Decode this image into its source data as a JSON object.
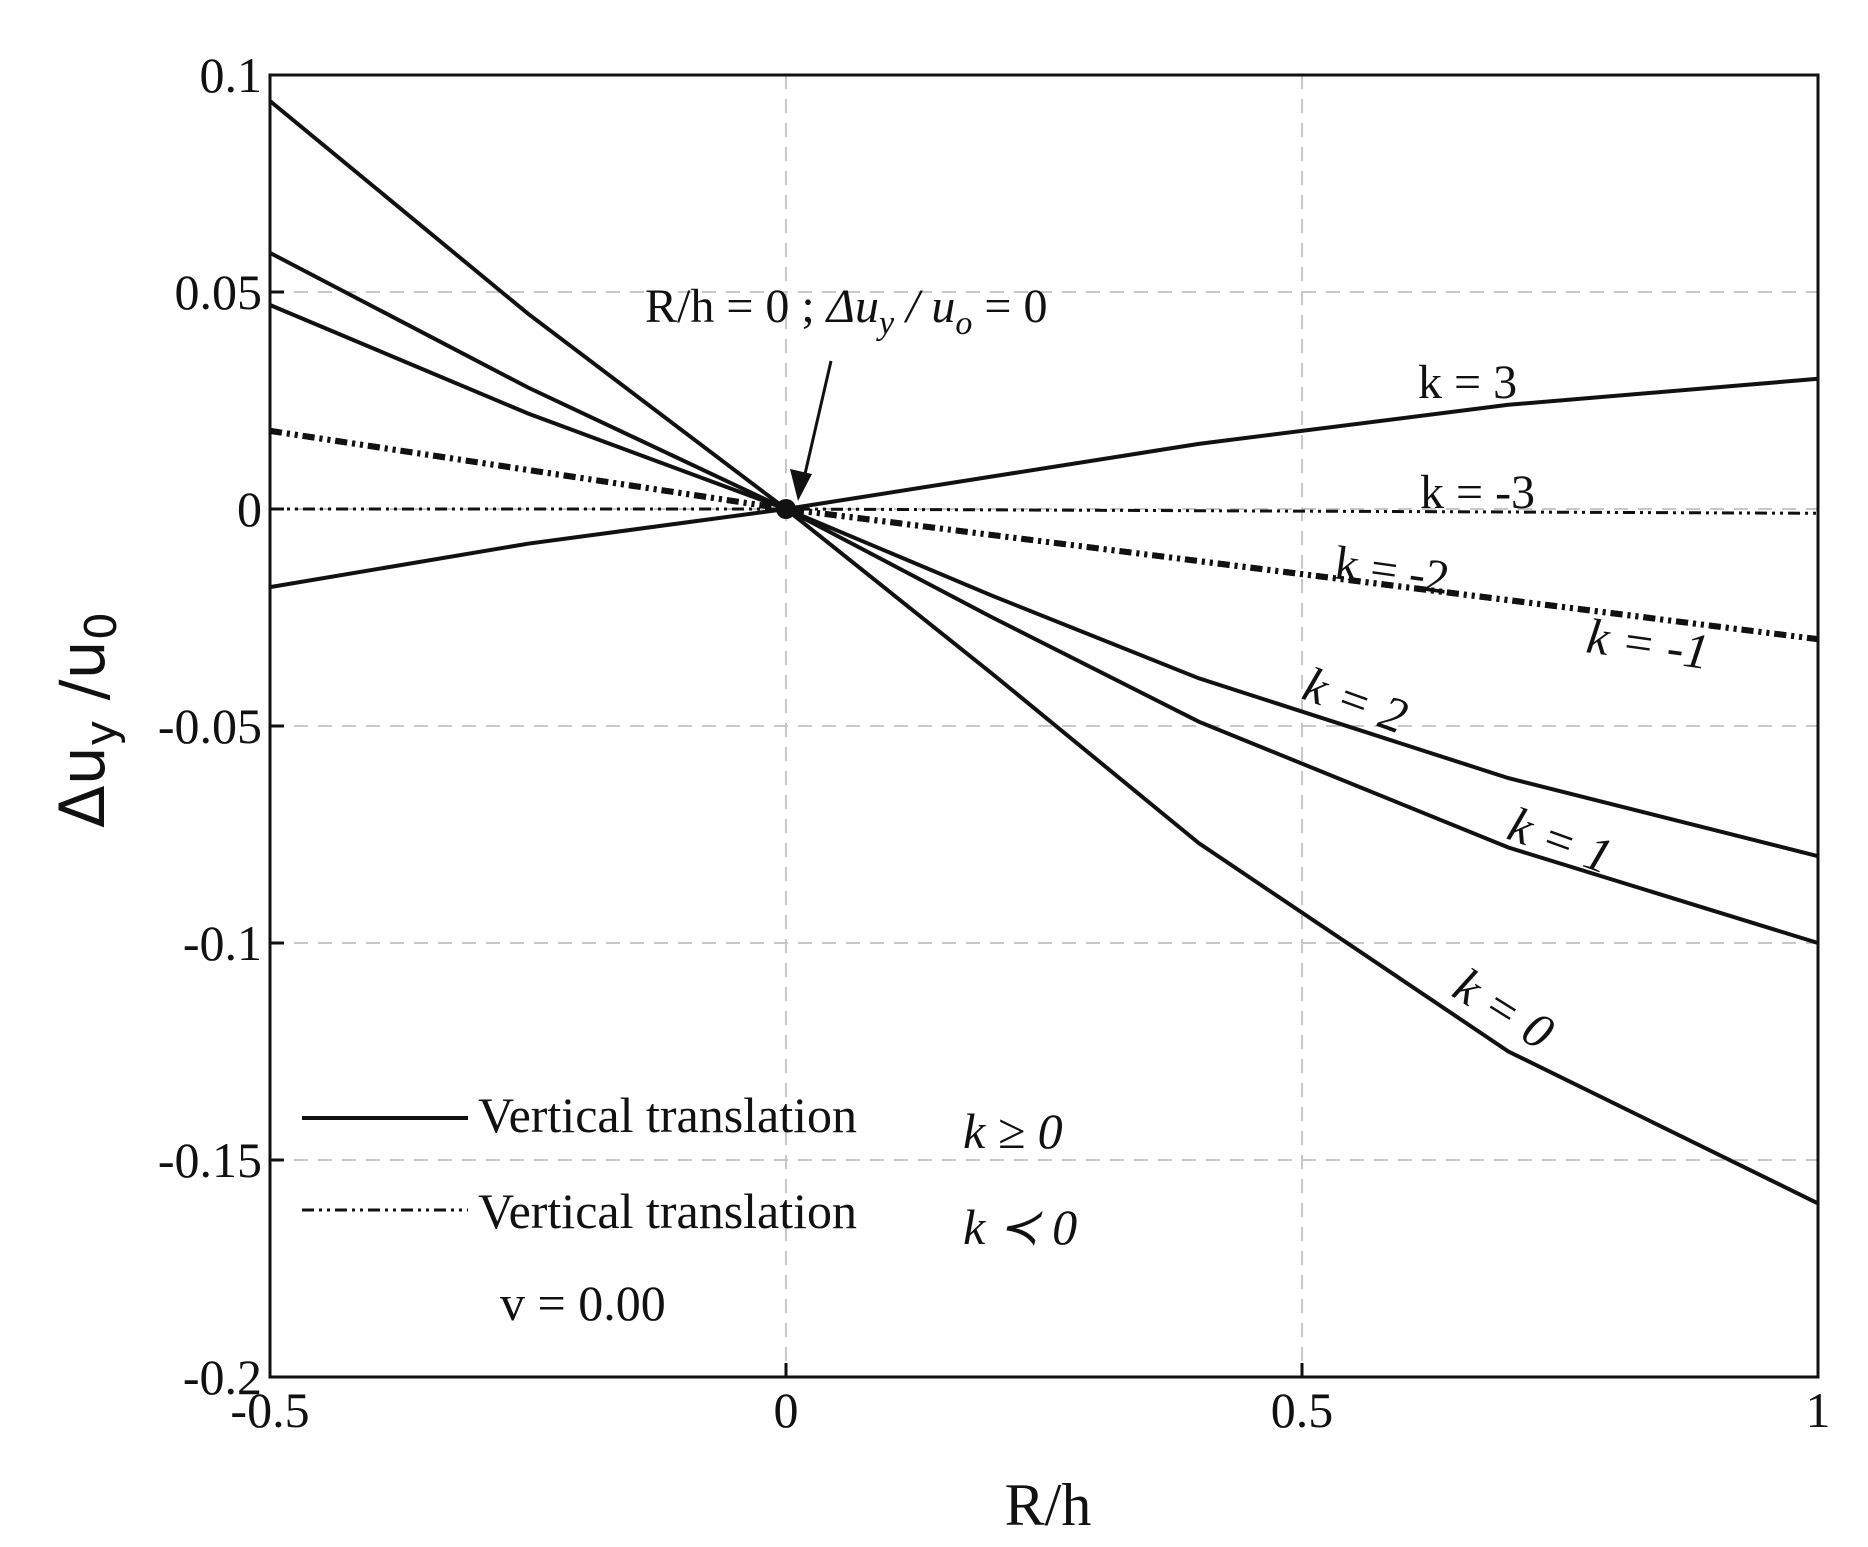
{
  "chart_data": {
    "type": "line",
    "xlabel": "R/h",
    "ylabel_main": "Δu",
    "ylabel_sub1": "y",
    "ylabel_mid": " /u",
    "ylabel_sub2": "0",
    "xlim": [
      -0.5,
      1
    ],
    "ylim": [
      -0.2,
      0.1
    ],
    "x_ticks": [
      -0.5,
      0,
      0.5,
      1
    ],
    "x_tick_labels": [
      "-0.5",
      "0",
      "0.5",
      "1"
    ],
    "y_ticks": [
      0.1,
      0.05,
      0,
      -0.05,
      -0.1,
      -0.15,
      -0.2
    ],
    "y_tick_labels": [
      "0.1",
      "0.05",
      "0",
      "-0.05",
      "-0.1",
      "-0.15",
      "-0.2"
    ],
    "grid": true,
    "series": [
      {
        "name": "k = 0",
        "style": "solid",
        "x": [
          -0.5,
          -0.25,
          0,
          0.2,
          0.4,
          0.7,
          1
        ],
        "y": [
          0.094,
          0.045,
          0,
          -0.038,
          -0.077,
          -0.125,
          -0.16
        ]
      },
      {
        "name": "k = 1",
        "style": "solid",
        "x": [
          -0.5,
          -0.25,
          0,
          0.2,
          0.4,
          0.7,
          1
        ],
        "y": [
          0.059,
          0.028,
          0,
          -0.025,
          -0.049,
          -0.078,
          -0.1
        ]
      },
      {
        "name": "k = 2",
        "style": "solid",
        "x": [
          -0.5,
          -0.25,
          0,
          0.2,
          0.4,
          0.7,
          1
        ],
        "y": [
          0.047,
          0.022,
          0,
          -0.02,
          -0.039,
          -0.062,
          -0.08
        ]
      },
      {
        "name": "k = 3",
        "style": "solid",
        "x": [
          -0.5,
          -0.25,
          0,
          0.4,
          0.7,
          1
        ],
        "y": [
          -0.018,
          -0.008,
          0,
          0.015,
          0.024,
          0.03
        ]
      },
      {
        "name": "k = -1",
        "style": "dotted-thick",
        "x": [
          -0.5,
          0,
          1
        ],
        "y": [
          0.018,
          0,
          -0.03
        ]
      },
      {
        "name": "k = -2",
        "style": "dotted-thick",
        "x": [
          -0.5,
          0,
          1
        ],
        "y": [
          0.018,
          0,
          -0.03
        ]
      },
      {
        "name": "k = -3",
        "style": "dotted-thin",
        "x": [
          -0.5,
          0,
          1
        ],
        "y": [
          0.0,
          0,
          -0.001
        ]
      }
    ],
    "annotations": {
      "origin_label_left": "R/h = 0",
      "origin_label_sep": " ; ",
      "origin_label_right": "Δu",
      "origin_label_right_sub": "y",
      "origin_label_right_mid": " / u",
      "origin_label_right_sub2": "o",
      "origin_label_right_end": " = 0",
      "label_k3": "k = 3",
      "label_km3": "k = -3",
      "label_km2": "k = -2",
      "label_km1": "k = -1",
      "label_k2": "k = 2",
      "label_k1": "k = 1",
      "label_k0": "k = 0"
    },
    "legend": {
      "placement": "bottom-left",
      "entry1_text": "Vertical translation",
      "entry1_math": "k ≥ 0",
      "entry2_text": "Vertical translation",
      "entry2_math": "k ≺ 0",
      "note": "v = 0.00"
    }
  }
}
